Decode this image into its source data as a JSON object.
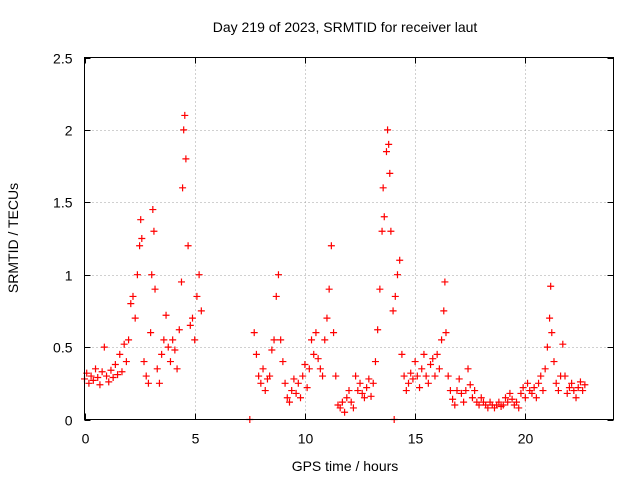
{
  "chart_data": {
    "type": "scatter",
    "title": "Day 219 of 2023, SRMTID for receiver laut",
    "xlabel": "GPS time / hours",
    "ylabel": "SRMTID / TECUs",
    "xlim": [
      0,
      24
    ],
    "ylim": [
      0,
      2.5
    ],
    "x_ticks": [
      0,
      5,
      10,
      15,
      20
    ],
    "x_tick_labels": [
      "0",
      "5",
      "10",
      "15",
      "20"
    ],
    "y_ticks": [
      0,
      0.5,
      1,
      1.5,
      2,
      2.5
    ],
    "y_tick_labels": [
      "0",
      "0.5",
      "1",
      "1.5",
      "2",
      "2.5"
    ],
    "grid": true,
    "marker": "+",
    "color": "#ff0000",
    "series": [
      {
        "name": "SRMTID",
        "points": [
          [
            0.0,
            0.28
          ],
          [
            0.1,
            0.32
          ],
          [
            0.2,
            0.25
          ],
          [
            0.3,
            0.3
          ],
          [
            0.4,
            0.27
          ],
          [
            0.5,
            0.35
          ],
          [
            0.6,
            0.29
          ],
          [
            0.7,
            0.24
          ],
          [
            0.8,
            0.33
          ],
          [
            0.9,
            0.5
          ],
          [
            1.0,
            0.3
          ],
          [
            1.1,
            0.26
          ],
          [
            1.2,
            0.34
          ],
          [
            1.3,
            0.29
          ],
          [
            1.4,
            0.38
          ],
          [
            1.5,
            0.31
          ],
          [
            1.6,
            0.45
          ],
          [
            1.7,
            0.33
          ],
          [
            1.8,
            0.52
          ],
          [
            1.9,
            0.4
          ],
          [
            2.0,
            0.55
          ],
          [
            2.1,
            0.8
          ],
          [
            2.2,
            0.85
          ],
          [
            2.3,
            0.7
          ],
          [
            2.4,
            1.0
          ],
          [
            2.5,
            1.2
          ],
          [
            2.55,
            1.38
          ],
          [
            2.6,
            1.25
          ],
          [
            2.7,
            0.4
          ],
          [
            2.8,
            0.3
          ],
          [
            2.9,
            0.25
          ],
          [
            3.0,
            0.6
          ],
          [
            3.05,
            1.0
          ],
          [
            3.1,
            1.45
          ],
          [
            3.15,
            1.3
          ],
          [
            3.2,
            0.9
          ],
          [
            3.3,
            0.35
          ],
          [
            3.4,
            0.25
          ],
          [
            3.5,
            0.45
          ],
          [
            3.6,
            0.55
          ],
          [
            3.7,
            0.72
          ],
          [
            3.8,
            0.5
          ],
          [
            3.9,
            0.4
          ],
          [
            4.0,
            0.55
          ],
          [
            4.1,
            0.48
          ],
          [
            4.2,
            0.35
          ],
          [
            4.3,
            0.62
          ],
          [
            4.4,
            0.95
          ],
          [
            4.45,
            1.6
          ],
          [
            4.5,
            2.0
          ],
          [
            4.55,
            2.1
          ],
          [
            4.6,
            1.8
          ],
          [
            4.7,
            1.2
          ],
          [
            4.8,
            0.65
          ],
          [
            4.9,
            0.7
          ],
          [
            5.0,
            0.55
          ],
          [
            5.1,
            0.85
          ],
          [
            5.2,
            1.0
          ],
          [
            5.3,
            0.75
          ],
          [
            7.5,
            0.0
          ],
          [
            7.7,
            0.6
          ],
          [
            7.8,
            0.45
          ],
          [
            7.9,
            0.3
          ],
          [
            8.0,
            0.25
          ],
          [
            8.1,
            0.35
          ],
          [
            8.2,
            0.2
          ],
          [
            8.3,
            0.28
          ],
          [
            8.4,
            0.3
          ],
          [
            8.5,
            0.48
          ],
          [
            8.6,
            0.55
          ],
          [
            8.7,
            0.85
          ],
          [
            8.8,
            1.0
          ],
          [
            8.9,
            0.55
          ],
          [
            9.0,
            0.4
          ],
          [
            9.1,
            0.25
          ],
          [
            9.2,
            0.15
          ],
          [
            9.3,
            0.12
          ],
          [
            9.4,
            0.2
          ],
          [
            9.5,
            0.28
          ],
          [
            9.6,
            0.18
          ],
          [
            9.7,
            0.25
          ],
          [
            9.8,
            0.15
          ],
          [
            9.9,
            0.3
          ],
          [
            10.0,
            0.38
          ],
          [
            10.1,
            0.22
          ],
          [
            10.2,
            0.35
          ],
          [
            10.3,
            0.55
          ],
          [
            10.4,
            0.45
          ],
          [
            10.5,
            0.6
          ],
          [
            10.6,
            0.42
          ],
          [
            10.7,
            0.35
          ],
          [
            10.8,
            0.3
          ],
          [
            10.9,
            0.55
          ],
          [
            11.0,
            0.7
          ],
          [
            11.1,
            0.9
          ],
          [
            11.2,
            1.2
          ],
          [
            11.3,
            0.6
          ],
          [
            11.4,
            0.3
          ],
          [
            11.5,
            0.1
          ],
          [
            11.6,
            0.08
          ],
          [
            11.7,
            0.12
          ],
          [
            11.8,
            0.05
          ],
          [
            11.9,
            0.15
          ],
          [
            12.0,
            0.2
          ],
          [
            12.1,
            0.12
          ],
          [
            12.2,
            0.08
          ],
          [
            12.3,
            0.3
          ],
          [
            12.4,
            0.2
          ],
          [
            12.5,
            0.25
          ],
          [
            12.6,
            0.18
          ],
          [
            12.7,
            0.15
          ],
          [
            12.8,
            0.22
          ],
          [
            12.9,
            0.28
          ],
          [
            13.0,
            0.16
          ],
          [
            13.1,
            0.25
          ],
          [
            13.2,
            0.4
          ],
          [
            13.3,
            0.62
          ],
          [
            13.4,
            0.9
          ],
          [
            13.5,
            1.3
          ],
          [
            13.55,
            1.6
          ],
          [
            13.6,
            1.4
          ],
          [
            13.7,
            1.85
          ],
          [
            13.75,
            2.0
          ],
          [
            13.8,
            1.9
          ],
          [
            13.85,
            1.7
          ],
          [
            13.9,
            1.3
          ],
          [
            14.0,
            0.75
          ],
          [
            14.05,
            0.0
          ],
          [
            14.1,
            0.85
          ],
          [
            14.2,
            1.0
          ],
          [
            14.3,
            1.1
          ],
          [
            14.4,
            0.45
          ],
          [
            14.5,
            0.3
          ],
          [
            14.6,
            0.2
          ],
          [
            14.7,
            0.25
          ],
          [
            14.8,
            0.32
          ],
          [
            14.9,
            0.28
          ],
          [
            15.0,
            0.4
          ],
          [
            15.1,
            0.3
          ],
          [
            15.2,
            0.22
          ],
          [
            15.3,
            0.35
          ],
          [
            15.4,
            0.45
          ],
          [
            15.5,
            0.3
          ],
          [
            15.6,
            0.25
          ],
          [
            15.7,
            0.38
          ],
          [
            15.8,
            0.42
          ],
          [
            15.9,
            0.3
          ],
          [
            16.0,
            0.45
          ],
          [
            16.1,
            0.35
          ],
          [
            16.2,
            0.55
          ],
          [
            16.3,
            0.75
          ],
          [
            16.35,
            0.95
          ],
          [
            16.4,
            0.6
          ],
          [
            16.5,
            0.3
          ],
          [
            16.6,
            0.2
          ],
          [
            16.7,
            0.14
          ],
          [
            16.8,
            0.1
          ],
          [
            16.9,
            0.2
          ],
          [
            17.0,
            0.28
          ],
          [
            17.1,
            0.18
          ],
          [
            17.2,
            0.12
          ],
          [
            17.3,
            0.2
          ],
          [
            17.4,
            0.35
          ],
          [
            17.5,
            0.24
          ],
          [
            17.6,
            0.15
          ],
          [
            17.7,
            0.2
          ],
          [
            17.8,
            0.12
          ],
          [
            17.9,
            0.1
          ],
          [
            18.0,
            0.15
          ],
          [
            18.1,
            0.12
          ],
          [
            18.2,
            0.1
          ],
          [
            18.3,
            0.08
          ],
          [
            18.4,
            0.12
          ],
          [
            18.5,
            0.1
          ],
          [
            18.6,
            0.08
          ],
          [
            18.7,
            0.1
          ],
          [
            18.8,
            0.12
          ],
          [
            18.9,
            0.09
          ],
          [
            19.0,
            0.1
          ],
          [
            19.1,
            0.15
          ],
          [
            19.2,
            0.12
          ],
          [
            19.3,
            0.18
          ],
          [
            19.4,
            0.14
          ],
          [
            19.5,
            0.1
          ],
          [
            19.6,
            0.12
          ],
          [
            19.7,
            0.08
          ],
          [
            19.8,
            0.18
          ],
          [
            19.9,
            0.22
          ],
          [
            20.0,
            0.15
          ],
          [
            20.1,
            0.25
          ],
          [
            20.2,
            0.2
          ],
          [
            20.3,
            0.18
          ],
          [
            20.4,
            0.22
          ],
          [
            20.5,
            0.15
          ],
          [
            20.6,
            0.25
          ],
          [
            20.7,
            0.3
          ],
          [
            20.8,
            0.2
          ],
          [
            20.9,
            0.35
          ],
          [
            21.0,
            0.5
          ],
          [
            21.1,
            0.7
          ],
          [
            21.15,
            0.92
          ],
          [
            21.2,
            0.6
          ],
          [
            21.3,
            0.4
          ],
          [
            21.4,
            0.25
          ],
          [
            21.5,
            0.2
          ],
          [
            21.6,
            0.3
          ],
          [
            21.7,
            0.52
          ],
          [
            21.8,
            0.3
          ],
          [
            21.9,
            0.18
          ],
          [
            22.0,
            0.22
          ],
          [
            22.1,
            0.25
          ],
          [
            22.2,
            0.2
          ],
          [
            22.3,
            0.15
          ],
          [
            22.4,
            0.22
          ],
          [
            22.5,
            0.26
          ],
          [
            22.6,
            0.2
          ],
          [
            22.7,
            0.24
          ]
        ]
      }
    ]
  }
}
